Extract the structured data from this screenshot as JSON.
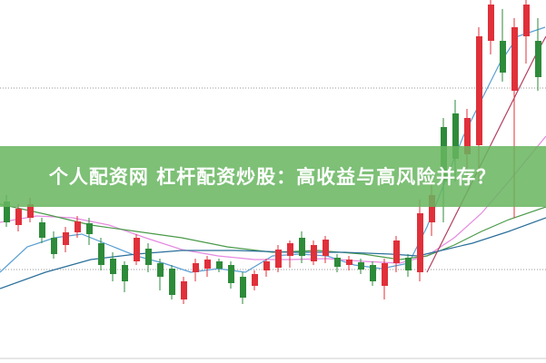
{
  "banner": {
    "title": "个人配资网 杠杆配资炒股：高收益与高风险并存？"
  }
}
